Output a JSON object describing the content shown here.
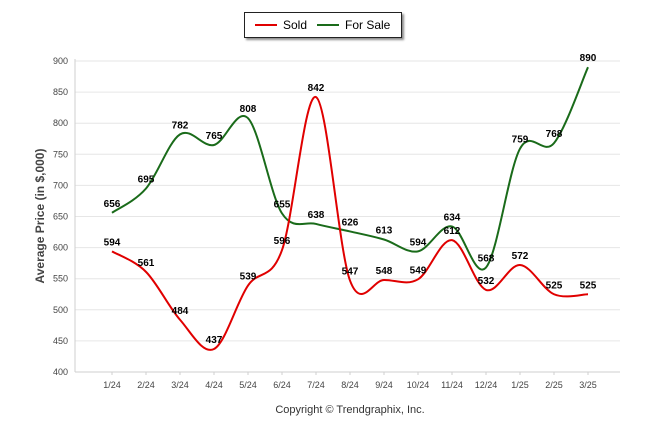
{
  "chart_data": {
    "type": "line",
    "categories": [
      "1/24",
      "2/24",
      "3/24",
      "4/24",
      "5/24",
      "6/24",
      "7/24",
      "8/24",
      "9/24",
      "10/24",
      "11/24",
      "12/24",
      "1/25",
      "2/25",
      "3/25"
    ],
    "series": [
      {
        "name": "Sold",
        "color": "#e00000",
        "values": [
          594,
          561,
          484,
          437,
          539,
          596,
          842,
          547,
          548,
          549,
          612,
          532,
          572,
          525,
          525
        ]
      },
      {
        "name": "For Sale",
        "color": "#1a6b1a",
        "values": [
          656,
          695,
          782,
          765,
          808,
          655,
          638,
          626,
          613,
          594,
          634,
          568,
          759,
          768,
          890
        ]
      }
    ],
    "ylabel": "Average Price (in $,000)",
    "ylim": [
      400,
      900
    ],
    "yticks": [
      400,
      450,
      500,
      550,
      600,
      650,
      700,
      750,
      800,
      850,
      900
    ],
    "grid": true,
    "legend_position": "top-center",
    "smooth": true,
    "data_labels": true
  },
  "footer": {
    "copyright": "Copyright © Trendgraphix, Inc."
  }
}
